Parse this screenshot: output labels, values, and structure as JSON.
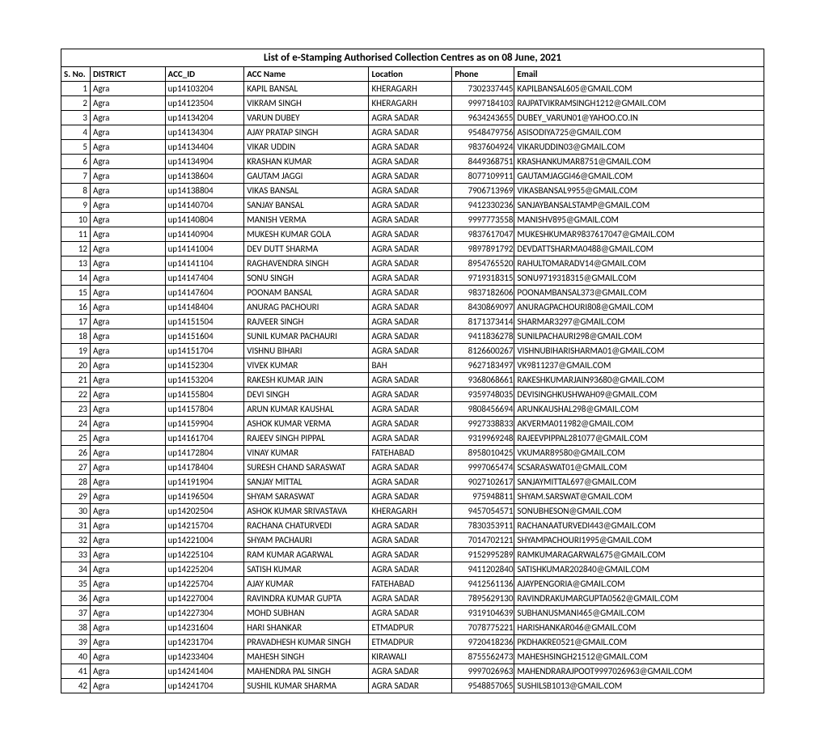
{
  "title": "List of e-Stamping Authorised Collection Centres as on 08 June, 2021",
  "headers": {
    "sno": "S. No.",
    "district": "DISTRICT",
    "accid": "ACC_ID",
    "accname": "ACC Name",
    "location": "Location",
    "phone": "Phone",
    "email": "Email"
  },
  "rows": [
    {
      "sno": "1",
      "district": "Agra",
      "accid": "up14103204",
      "accname": "KAPIL BANSAL",
      "location": "KHERAGARH",
      "phone": "7302337445",
      "email": "KAPILBANSAL605@GMAIL.COM"
    },
    {
      "sno": "2",
      "district": "Agra",
      "accid": "up14123504",
      "accname": "VIKRAM SINGH",
      "location": "KHERAGARH",
      "phone": "9997184103",
      "email": "RAJPATVIKRAMSINGH1212@GMAIL.COM"
    },
    {
      "sno": "3",
      "district": "Agra",
      "accid": "up14134204",
      "accname": "VARUN DUBEY",
      "location": "AGRA SADAR",
      "phone": "9634243655",
      "email": "DUBEY_VARUN01@YAHOO.CO.IN"
    },
    {
      "sno": "4",
      "district": "Agra",
      "accid": "up14134304",
      "accname": "AJAY PRATAP SINGH",
      "location": "AGRA SADAR",
      "phone": "9548479756",
      "email": "ASISODIYA725@GMAIL.COM"
    },
    {
      "sno": "5",
      "district": "Agra",
      "accid": "up14134404",
      "accname": "VIKAR UDDIN",
      "location": "AGRA SADAR",
      "phone": "9837604924",
      "email": "VIKARUDDIN03@GMAIL.COM"
    },
    {
      "sno": "6",
      "district": "Agra",
      "accid": "up14134904",
      "accname": "KRASHAN KUMAR",
      "location": "AGRA SADAR",
      "phone": "8449368751",
      "email": "KRASHANKUMAR8751@GMAIL.COM"
    },
    {
      "sno": "7",
      "district": "Agra",
      "accid": "up14138604",
      "accname": "GAUTAM JAGGI",
      "location": "AGRA SADAR",
      "phone": "8077109911",
      "email": "GAUTAMJAGGI46@GMAIL.COM"
    },
    {
      "sno": "8",
      "district": "Agra",
      "accid": "up14138804",
      "accname": "VIKAS BANSAL",
      "location": "AGRA SADAR",
      "phone": "7906713969",
      "email": "VIKASBANSAL9955@GMAIL.COM"
    },
    {
      "sno": "9",
      "district": "Agra",
      "accid": "up14140704",
      "accname": "SANJAY BANSAL",
      "location": "AGRA SADAR",
      "phone": "9412330236",
      "email": "SANJAYBANSALSTAMP@GMAIL.COM"
    },
    {
      "sno": "10",
      "district": "Agra",
      "accid": "up14140804",
      "accname": "MANISH VERMA",
      "location": "AGRA SADAR",
      "phone": "9997773558",
      "email": "MANISHV895@GMAIL.COM"
    },
    {
      "sno": "11",
      "district": "Agra",
      "accid": "up14140904",
      "accname": "MUKESH KUMAR GOLA",
      "location": "AGRA SADAR",
      "phone": "9837617047",
      "email": "MUKESHKUMAR9837617047@GMAIL.COM"
    },
    {
      "sno": "12",
      "district": "Agra",
      "accid": "up14141004",
      "accname": "DEV DUTT SHARMA",
      "location": "AGRA SADAR",
      "phone": "9897891792",
      "email": "DEVDATTSHARMA0488@GMAIL.COM"
    },
    {
      "sno": "13",
      "district": "Agra",
      "accid": "up14141104",
      "accname": "RAGHAVENDRA SINGH",
      "location": "AGRA SADAR",
      "phone": "8954765520",
      "email": "RAHULTOMARADV14@GMAIL.COM"
    },
    {
      "sno": "14",
      "district": "Agra",
      "accid": "up14147404",
      "accname": "SONU SINGH",
      "location": "AGRA SADAR",
      "phone": "9719318315",
      "email": "SONU9719318315@GMAIL.COM"
    },
    {
      "sno": "15",
      "district": "Agra",
      "accid": "up14147604",
      "accname": "POONAM BANSAL",
      "location": "AGRA SADAR",
      "phone": "9837182606",
      "email": "POONAMBANSAL373@GMAIL.COM"
    },
    {
      "sno": "16",
      "district": "Agra",
      "accid": "up14148404",
      "accname": "ANURAG PACHOURI",
      "location": "AGRA SADAR",
      "phone": "8430869097",
      "email": "ANURAGPACHOURI808@GMAIL.COM"
    },
    {
      "sno": "17",
      "district": "Agra",
      "accid": "up14151504",
      "accname": "RAJVEER SINGH",
      "location": "AGRA SADAR",
      "phone": "8171373414",
      "email": "SHARMAR3297@GMAIL.COM"
    },
    {
      "sno": "18",
      "district": "Agra",
      "accid": "up14151604",
      "accname": "SUNIL KUMAR PACHAURI",
      "location": "AGRA SADAR",
      "phone": "9411836278",
      "email": "SUNILPACHAURI298@GMAIL.COM"
    },
    {
      "sno": "19",
      "district": "Agra",
      "accid": "up14151704",
      "accname": "VISHNU BIHARI",
      "location": "AGRA SADAR",
      "phone": "8126600267",
      "email": "VISHNUBIHARISHARMA01@GMAIL.COM"
    },
    {
      "sno": "20",
      "district": "Agra",
      "accid": "up14152304",
      "accname": "VIVEK KUMAR",
      "location": "BAH",
      "phone": "9627183497",
      "email": "VK9811237@GMAIL.COM"
    },
    {
      "sno": "21",
      "district": "Agra",
      "accid": "up14153204",
      "accname": "RAKESH KUMAR JAIN",
      "location": "AGRA SADAR",
      "phone": "9368068661",
      "email": "RAKESHKUMARJAIN93680@GMAIL.COM"
    },
    {
      "sno": "22",
      "district": "Agra",
      "accid": "up14155804",
      "accname": "DEVI SINGH",
      "location": "AGRA SADAR",
      "phone": "9359748035",
      "email": "DEVISINGHKUSHWAH09@GMAIL.COM"
    },
    {
      "sno": "23",
      "district": "Agra",
      "accid": "up14157804",
      "accname": "ARUN KUMAR KAUSHAL",
      "location": "AGRA SADAR",
      "phone": "9808456694",
      "email": "ARUNKAUSHAL298@GMAIL.COM"
    },
    {
      "sno": "24",
      "district": "Agra",
      "accid": "up14159904",
      "accname": "ASHOK KUMAR VERMA",
      "location": "AGRA SADAR",
      "phone": "9927338833",
      "email": "AKVERMA011982@GMAIL.COM"
    },
    {
      "sno": "25",
      "district": "Agra",
      "accid": "up14161704",
      "accname": "RAJEEV SINGH PIPPAL",
      "location": "AGRA SADAR",
      "phone": "9319969248",
      "email": "RAJEEVPIPPAL281077@GMAIL.COM"
    },
    {
      "sno": "26",
      "district": "Agra",
      "accid": "up14172804",
      "accname": "VINAY KUMAR",
      "location": "FATEHABAD",
      "phone": "8958010425",
      "email": "VKUMAR89580@GMAIL.COM"
    },
    {
      "sno": "27",
      "district": "Agra",
      "accid": "up14178404",
      "accname": "SURESH CHAND SARASWAT",
      "location": "AGRA SADAR",
      "phone": "9997065474",
      "email": "SCSARASWAT01@GMAIL.COM"
    },
    {
      "sno": "28",
      "district": "Agra",
      "accid": "up14191904",
      "accname": "SANJAY MITTAL",
      "location": "AGRA SADAR",
      "phone": "9027102617",
      "email": "SANJAYMITTAL697@GMAIL.COM"
    },
    {
      "sno": "29",
      "district": "Agra",
      "accid": "up14196504",
      "accname": "SHYAM SARASWAT",
      "location": "AGRA SADAR",
      "phone": "975948811",
      "email": "SHYAM.SARSWAT@GMAIL.COM"
    },
    {
      "sno": "30",
      "district": "Agra",
      "accid": "up14202504",
      "accname": "ASHOK KUMAR SRIVASTAVA",
      "location": "KHERAGARH",
      "phone": "9457054571",
      "email": "SONUBHESON@GMAIL.COM"
    },
    {
      "sno": "31",
      "district": "Agra",
      "accid": "up14215704",
      "accname": "RACHANA CHATURVEDI",
      "location": "AGRA SADAR",
      "phone": "7830353911",
      "email": "RACHANAATURVEDI443@GMAIL.COM"
    },
    {
      "sno": "32",
      "district": "Agra",
      "accid": "up14221004",
      "accname": "SHYAM PACHAURI",
      "location": "AGRA SADAR",
      "phone": "7014702121",
      "email": "SHYAMPACHOURI1995@GMAIL.COM"
    },
    {
      "sno": "33",
      "district": "Agra",
      "accid": "up14225104",
      "accname": "RAM KUMAR AGARWAL",
      "location": "AGRA SADAR",
      "phone": "9152995289",
      "email": "RAMKUMARAGARWAL675@GMAIL.COM"
    },
    {
      "sno": "34",
      "district": "Agra",
      "accid": "up14225204",
      "accname": "SATISH KUMAR",
      "location": "AGRA SADAR",
      "phone": "9411202840",
      "email": "SATISHKUMAR202840@GMAIL.COM"
    },
    {
      "sno": "35",
      "district": "Agra",
      "accid": "up14225704",
      "accname": "AJAY KUMAR",
      "location": "FATEHABAD",
      "phone": "9412561136",
      "email": "AJAYPENGORIA@GMAIL.COM"
    },
    {
      "sno": "36",
      "district": "Agra",
      "accid": "up14227004",
      "accname": "RAVINDRA KUMAR GUPTA",
      "location": "AGRA SADAR",
      "phone": "7895629130",
      "email": "RAVINDRAKUMARGUPTA0562@GMAIL.COM"
    },
    {
      "sno": "37",
      "district": "Agra",
      "accid": "up14227304",
      "accname": "MOHD SUBHAN",
      "location": "AGRA SADAR",
      "phone": "9319104639",
      "email": "SUBHANUSMANI465@GMAIL.COM"
    },
    {
      "sno": "38",
      "district": "Agra",
      "accid": "up14231604",
      "accname": "HARI SHANKAR",
      "location": "ETMADPUR",
      "phone": "7078775221",
      "email": "HARISHANKAR046@GMAIL.COM"
    },
    {
      "sno": "39",
      "district": "Agra",
      "accid": "up14231704",
      "accname": "PRAVADHESH KUMAR SINGH",
      "location": "ETMADPUR",
      "phone": "9720418236",
      "email": "PKDHAKRE0521@GMAIL.COM"
    },
    {
      "sno": "40",
      "district": "Agra",
      "accid": "up14233404",
      "accname": "MAHESH SINGH",
      "location": "KIRAWALI",
      "phone": "8755562473",
      "email": "MAHESHSINGH21512@GMAIL.COM"
    },
    {
      "sno": "41",
      "district": "Agra",
      "accid": "up14241404",
      "accname": "MAHENDRA PAL SINGH",
      "location": "AGRA SADAR",
      "phone": "9997026963",
      "email": "MAHENDRARAJPOOT9997026963@GMAIL.COM"
    },
    {
      "sno": "42",
      "district": "Agra",
      "accid": "up14241704",
      "accname": "SUSHIL KUMAR SHARMA",
      "location": "AGRA SADAR",
      "phone": "9548857065",
      "email": "SUSHILSB1013@GMAIL.COM"
    }
  ]
}
